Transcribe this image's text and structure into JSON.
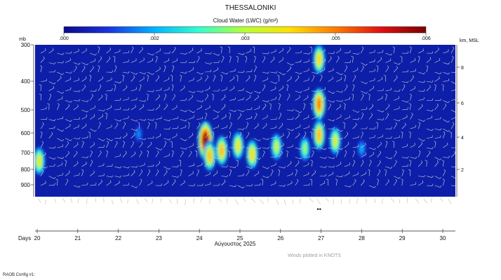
{
  "chart_data": {
    "type": "heatmap",
    "title": "THESSALONIKI",
    "colorbar": {
      "label": "Cloud Water (LWC) (g/m³)",
      "ticks": [
        ".000",
        ".002",
        ".003",
        ".005",
        ".006"
      ],
      "range": [
        0,
        0.006
      ],
      "colors": [
        "#0a0a8a",
        "#1a33e0",
        "#00b4ff",
        "#33ffcc",
        "#b8ff33",
        "#ffe000",
        "#ff7a00",
        "#e01010",
        "#7a0000"
      ]
    },
    "y_left": {
      "unit": "mb",
      "ticks": [
        "300",
        "400",
        "500",
        "600",
        "700",
        "800",
        "900"
      ]
    },
    "y_right": {
      "unit": "km, MSL",
      "ticks": [
        "8",
        "6",
        "4",
        "2"
      ]
    },
    "x": {
      "label": "Days",
      "ticks": [
        "20",
        "21",
        "22",
        "23",
        "24",
        "25",
        "26",
        "27",
        "28",
        "29",
        "30"
      ],
      "month_label": "Αύγουστος 2025"
    },
    "background_color": "#0d1fa8",
    "cells": [
      {
        "day": 20.05,
        "p": 750,
        "lwc": 0.0035
      },
      {
        "day": 22.5,
        "p": 605,
        "lwc": 0.0013
      },
      {
        "day": 24.15,
        "p": 640,
        "lwc": 0.006
      },
      {
        "day": 24.25,
        "p": 720,
        "lwc": 0.004
      },
      {
        "day": 24.55,
        "p": 690,
        "lwc": 0.004
      },
      {
        "day": 24.95,
        "p": 665,
        "lwc": 0.0036
      },
      {
        "day": 25.3,
        "p": 710,
        "lwc": 0.0038
      },
      {
        "day": 25.9,
        "p": 670,
        "lwc": 0.0032
      },
      {
        "day": 26.6,
        "p": 680,
        "lwc": 0.0028
      },
      {
        "day": 26.95,
        "p": 340,
        "lwc": 0.0038
      },
      {
        "day": 26.95,
        "p": 480,
        "lwc": 0.0045
      },
      {
        "day": 26.95,
        "p": 610,
        "lwc": 0.004
      },
      {
        "day": 27.35,
        "p": 640,
        "lwc": 0.0034
      },
      {
        "day": 28.0,
        "p": 680,
        "lwc": 0.0015
      }
    ],
    "precip_marker": {
      "day": 26.95,
      "symbol": "••"
    }
  },
  "footer": {
    "winds_note": "Winds plotted in KNOTS",
    "config": "RAOB Config #1:"
  }
}
